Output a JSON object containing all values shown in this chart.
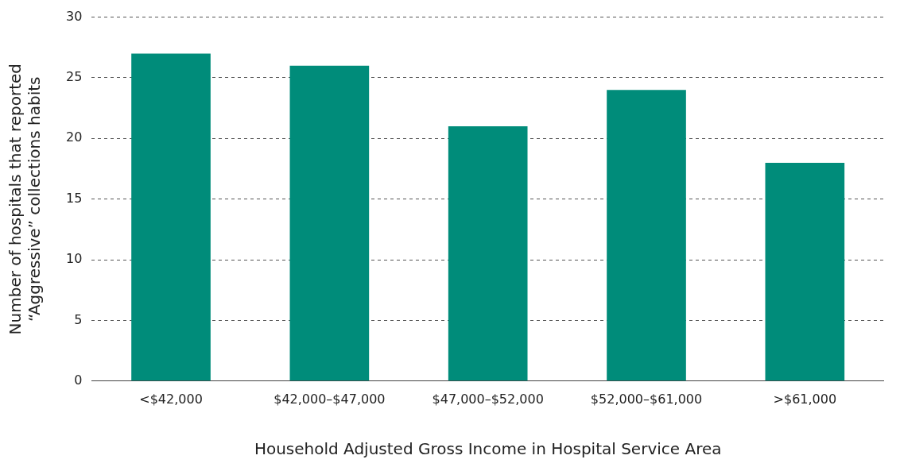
{
  "chart_data": {
    "type": "bar",
    "xlabel": "Household Adjusted Gross Income in Hospital Service Area",
    "ylabel": "Number of hospitals that reported\n“Aggressive” collections habits",
    "categories": [
      "<$42,000",
      "$42,000–$47,000",
      "$47,000–$52,000",
      "$52,000–$61,000",
      ">$61,000"
    ],
    "values": [
      27,
      26,
      21,
      24,
      18
    ],
    "color": "#008c7a",
    "ylim": [
      0,
      30
    ],
    "yticks": [
      0,
      5,
      10,
      15,
      20,
      25,
      30
    ],
    "grid": "y",
    "legend": false
  }
}
